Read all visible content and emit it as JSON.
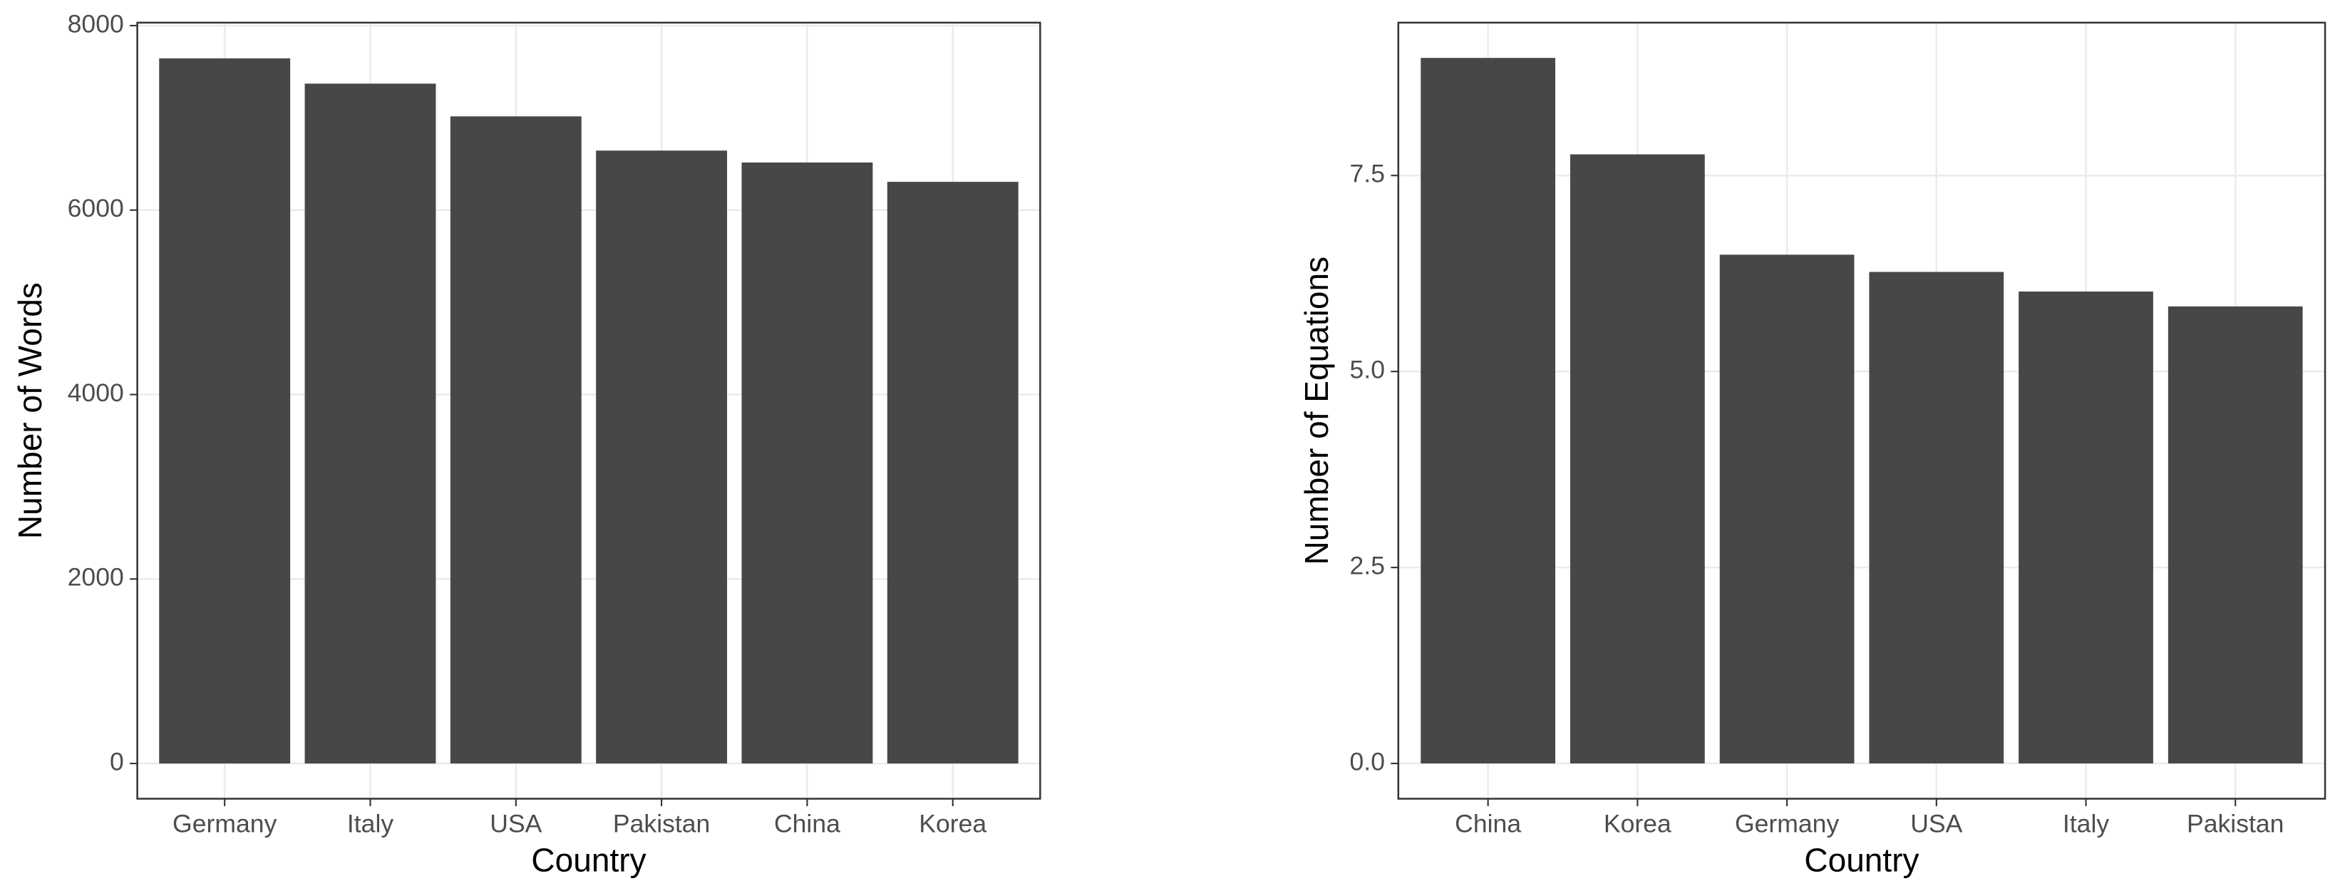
{
  "chart_data": [
    {
      "type": "bar",
      "x_label": "Country",
      "y_label": "Number of Words",
      "categories": [
        "Germany",
        "Italy",
        "USA",
        "Pakistan",
        "China",
        "Korea"
      ],
      "values": [
        7645,
        7371,
        7016,
        6645,
        6516,
        6306
      ],
      "color": "#474747",
      "ylim": [
        -382,
        8032
      ],
      "yticks": [
        0,
        2000,
        4000,
        6000,
        8000
      ],
      "grid": true
    },
    {
      "type": "bar",
      "x_label": "Country",
      "y_label": "Number of Equations",
      "categories": [
        "China",
        "Korea",
        "Germany",
        "USA",
        "Italy",
        "Pakistan"
      ],
      "values": [
        9.0,
        7.77,
        6.49,
        6.27,
        6.02,
        5.83
      ],
      "color": "#474747",
      "ylim": [
        -0.45,
        9.45
      ],
      "yticks": [
        {
          "value": 0,
          "label": "0.0"
        },
        {
          "value": 2.5,
          "label": "2.5"
        },
        {
          "value": 5,
          "label": "5.0"
        },
        {
          "value": 7.5,
          "label": "7.5"
        }
      ],
      "grid": true
    }
  ]
}
